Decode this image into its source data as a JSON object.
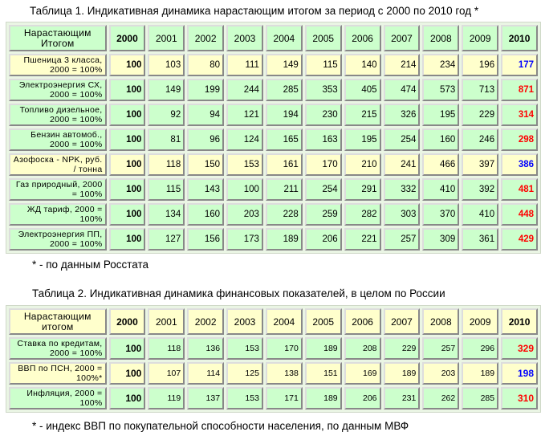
{
  "table1": {
    "title": "Таблица 1. Индикативная динамика нарастающим итогом за период с 2000 по 2010 год *",
    "corner": "Нарастающим Итогом",
    "years": [
      "2000",
      "2001",
      "2002",
      "2003",
      "2004",
      "2005",
      "2006",
      "2007",
      "2008",
      "2009",
      "2010"
    ],
    "rows": [
      {
        "label": "Пшеница 3 класса, 2000 = 100%",
        "bg": "#ffffcc",
        "values": [
          "100",
          "103",
          "80",
          "111",
          "149",
          "115",
          "140",
          "214",
          "234",
          "196",
          "177"
        ],
        "last_color": "#0000ff"
      },
      {
        "label": "Электроэнергия СХ, 2000 = 100%",
        "bg": "#ccffcc",
        "values": [
          "100",
          "149",
          "199",
          "244",
          "285",
          "353",
          "405",
          "474",
          "573",
          "713",
          "871"
        ],
        "last_color": "#ff0000"
      },
      {
        "label": "Топливо дизельное, 2000 = 100%",
        "bg": "#ccffcc",
        "values": [
          "100",
          "92",
          "94",
          "121",
          "194",
          "230",
          "215",
          "326",
          "195",
          "229",
          "314"
        ],
        "last_color": "#ff0000"
      },
      {
        "label": "Бензин автомоб., 2000 = 100%",
        "bg": "#ccffcc",
        "values": [
          "100",
          "81",
          "96",
          "124",
          "165",
          "163",
          "195",
          "254",
          "160",
          "246",
          "298"
        ],
        "last_color": "#ff0000"
      },
      {
        "label": "Азофоска - NPK, руб. / тонна",
        "bg": "#ffffcc",
        "values": [
          "100",
          "118",
          "150",
          "153",
          "161",
          "170",
          "210",
          "241",
          "466",
          "397",
          "386"
        ],
        "last_color": "#0000ff"
      },
      {
        "label": "Газ природный, 2000 = 100%",
        "bg": "#ccffcc",
        "values": [
          "100",
          "115",
          "143",
          "100",
          "211",
          "254",
          "291",
          "332",
          "410",
          "392",
          "481"
        ],
        "last_color": "#ff0000"
      },
      {
        "label": "ЖД тариф, 2000 = 100%",
        "bg": "#ccffcc",
        "values": [
          "100",
          "134",
          "160",
          "203",
          "228",
          "259",
          "282",
          "303",
          "370",
          "410",
          "448"
        ],
        "last_color": "#ff0000"
      },
      {
        "label": "Электроэнергия ПП, 2000 = 100%",
        "bg": "#ccffcc",
        "values": [
          "100",
          "127",
          "156",
          "173",
          "189",
          "206",
          "221",
          "257",
          "309",
          "361",
          "429"
        ],
        "last_color": "#ff0000"
      }
    ],
    "footnote": "* - по данным Росстата"
  },
  "table2": {
    "title": "Таблица 2. Индикативная динамика финансовых показателей, в целом по России",
    "corner": "Нарастающим итогом",
    "years": [
      "2000",
      "2001",
      "2002",
      "2003",
      "2004",
      "2005",
      "2006",
      "2007",
      "2008",
      "2009",
      "2010"
    ],
    "rows": [
      {
        "label": "Ставка по кредитам, 2000 = 100%",
        "bg": "#ccffcc",
        "values": [
          "100",
          "118",
          "136",
          "153",
          "170",
          "189",
          "208",
          "229",
          "257",
          "296",
          "329"
        ],
        "last_color": "#ff0000"
      },
      {
        "label": "ВВП по ПСН, 2000 = 100%*",
        "bg": "#ffffcc",
        "values": [
          "100",
          "107",
          "114",
          "125",
          "138",
          "151",
          "169",
          "189",
          "203",
          "189",
          "198"
        ],
        "last_color": "#0000ff"
      },
      {
        "label": "Инфляция, 2000 = 100%",
        "bg": "#ccffcc",
        "values": [
          "100",
          "119",
          "137",
          "153",
          "171",
          "189",
          "206",
          "231",
          "262",
          "285",
          "310"
        ],
        "last_color": "#ff0000"
      }
    ],
    "footnote": "* - индекс ВВП по покупательной способности населения, по данным МВФ"
  }
}
